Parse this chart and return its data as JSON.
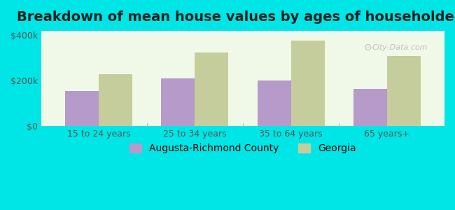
{
  "title": "Breakdown of mean house values by ages of householders",
  "categories": [
    "15 to 24 years",
    "25 to 34 years",
    "35 to 64 years",
    "65 years+"
  ],
  "augusta_values": [
    155000,
    210000,
    200000,
    165000
  ],
  "georgia_values": [
    230000,
    325000,
    375000,
    310000
  ],
  "augusta_color": "#b59aca",
  "georgia_color": "#c5cd9d",
  "background_color": "#00e5e5",
  "plot_bg_color_top": "#f0f8e8",
  "plot_bg_color_bottom": "#e8f8f8",
  "ylim": [
    0,
    420000
  ],
  "yticks": [
    0,
    200000,
    400000
  ],
  "ytick_labels": [
    "$0",
    "$200k",
    "$400k"
  ],
  "legend_augusta": "Augusta-Richmond County",
  "legend_georgia": "Georgia",
  "bar_width": 0.35,
  "title_fontsize": 14,
  "tick_fontsize": 9,
  "legend_fontsize": 10,
  "watermark_text": "City-Data.com"
}
